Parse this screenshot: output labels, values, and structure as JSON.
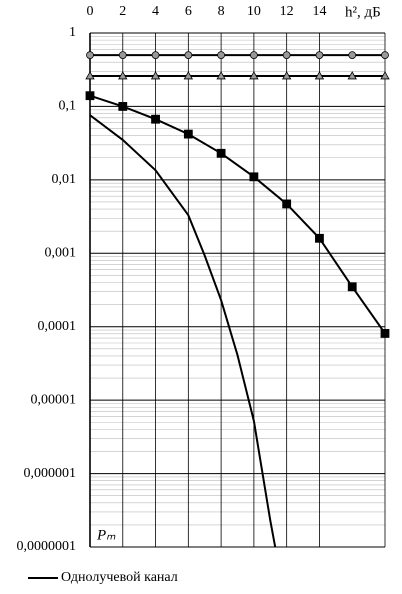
{
  "chart_data": {
    "type": "line",
    "log_y": true,
    "grid": true,
    "x_label": "h², дБ",
    "y_label": "Pₘ",
    "xlim": [
      0,
      18
    ],
    "xticks": [
      0,
      2,
      4,
      6,
      8,
      10,
      12,
      14
    ],
    "ylim": [
      1e-07,
      1
    ],
    "yticks": [
      1,
      {
        "value": 0.1,
        "label": "0,1"
      },
      {
        "value": 0.01,
        "label": "0,01"
      },
      {
        "value": 0.001,
        "label": "0,001"
      },
      {
        "value": 0.0001,
        "label": "0,0001"
      },
      {
        "value": 1e-05,
        "label": "0,00001"
      },
      {
        "value": 1e-06,
        "label": "0,000001"
      },
      {
        "value": 1e-07,
        "label": "0,0000001"
      }
    ],
    "series": [
      {
        "marker": "circle",
        "color": "#999999",
        "x": [
          0,
          2,
          4,
          6,
          8,
          10,
          12,
          14,
          16,
          18
        ],
        "values": [
          0.5,
          0.5,
          0.5,
          0.5,
          0.5,
          0.5,
          0.5,
          0.5,
          0.5,
          0.5
        ]
      },
      {
        "marker": "triangle",
        "color": "#999999",
        "x": [
          0,
          2,
          4,
          6,
          8,
          10,
          12,
          14,
          16,
          18
        ],
        "values": [
          0.26,
          0.26,
          0.26,
          0.26,
          0.26,
          0.26,
          0.26,
          0.26,
          0.26,
          0.26
        ]
      },
      {
        "marker": "square",
        "color": "#000000",
        "x": [
          0,
          2,
          4,
          6,
          8,
          10,
          12,
          14,
          16,
          18
        ],
        "values": [
          0.14,
          0.1,
          0.067,
          0.042,
          0.023,
          0.011,
          0.0047,
          0.0016,
          0.00035,
          8.1e-05
        ]
      },
      {
        "name": "Однолучевой канал",
        "marker": "none",
        "color": "#000000",
        "x": [
          0,
          2,
          4,
          6,
          7,
          8,
          9,
          10,
          11,
          11.3
        ],
        "values": [
          0.076,
          0.035,
          0.0135,
          0.0033,
          0.00093,
          0.00023,
          4.1e-05,
          5.2e-06,
          2.3e-07,
          1e-07
        ]
      }
    ]
  }
}
